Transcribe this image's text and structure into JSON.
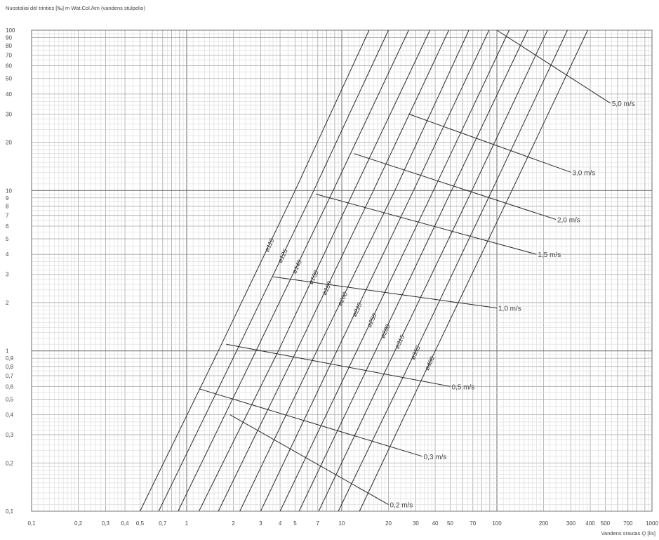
{
  "chart_data": {
    "type": "line",
    "title": "",
    "ylabel": "Nuostoliai dėl trinties [‰] m Wat.Col./km (vandens stulpelio)",
    "xlabel": "Vandens srautas  Q [l/s]",
    "x_scale": "log",
    "y_scale": "log",
    "xlim": [
      0.1,
      1000
    ],
    "ylim": [
      0.1,
      100
    ],
    "grid": true,
    "x_ticks": [
      {
        "value": 0.1,
        "label": "0,1"
      },
      {
        "value": 0.2,
        "label": "0,2"
      },
      {
        "value": 0.3,
        "label": "0,3"
      },
      {
        "value": 0.4,
        "label": "0,4"
      },
      {
        "value": 0.5,
        "label": "0,5"
      },
      {
        "value": 0.7,
        "label": "0,7"
      },
      {
        "value": 1,
        "label": "1"
      },
      {
        "value": 2,
        "label": "2"
      },
      {
        "value": 3,
        "label": "3"
      },
      {
        "value": 4,
        "label": "4"
      },
      {
        "value": 5,
        "label": "5"
      },
      {
        "value": 7,
        "label": "7"
      },
      {
        "value": 10,
        "label": "10"
      },
      {
        "value": 20,
        "label": "20"
      },
      {
        "value": 30,
        "label": "30"
      },
      {
        "value": 40,
        "label": "40"
      },
      {
        "value": 50,
        "label": "50"
      },
      {
        "value": 70,
        "label": "70"
      },
      {
        "value": 100,
        "label": "100"
      },
      {
        "value": 200,
        "label": "200"
      },
      {
        "value": 300,
        "label": "300"
      },
      {
        "value": 400,
        "label": "400"
      },
      {
        "value": 500,
        "label": "500"
      },
      {
        "value": 700,
        "label": "700"
      },
      {
        "value": 1000,
        "label": "1000"
      }
    ],
    "y_ticks": [
      {
        "value": 0.1,
        "label": "0,1"
      },
      {
        "value": 0.2,
        "label": "0,2"
      },
      {
        "value": 0.3,
        "label": "0,3"
      },
      {
        "value": 0.4,
        "label": "0,4"
      },
      {
        "value": 0.5,
        "label": "0,5"
      },
      {
        "value": 0.6,
        "label": "0,6"
      },
      {
        "value": 0.7,
        "label": "0,7"
      },
      {
        "value": 0.8,
        "label": "0,8"
      },
      {
        "value": 0.9,
        "label": "0,9"
      },
      {
        "value": 1,
        "label": "1"
      },
      {
        "value": 2,
        "label": "2"
      },
      {
        "value": 3,
        "label": "3"
      },
      {
        "value": 4,
        "label": "4"
      },
      {
        "value": 5,
        "label": "5"
      },
      {
        "value": 6,
        "label": "6"
      },
      {
        "value": 7,
        "label": "7"
      },
      {
        "value": 8,
        "label": "8"
      },
      {
        "value": 9,
        "label": "9"
      },
      {
        "value": 10,
        "label": "10"
      },
      {
        "value": 20,
        "label": "20"
      },
      {
        "value": 30,
        "label": "30"
      },
      {
        "value": 40,
        "label": "40"
      },
      {
        "value": 50,
        "label": "50"
      },
      {
        "value": 60,
        "label": "60"
      },
      {
        "value": 70,
        "label": "70"
      },
      {
        "value": 80,
        "label": "80"
      },
      {
        "value": 90,
        "label": "90"
      },
      {
        "value": 100,
        "label": "100"
      }
    ],
    "series": [
      {
        "name": "ø110",
        "points": [
          [
            0.5,
            0.1
          ],
          [
            1.6,
            1.0
          ],
          [
            5.0,
            10.0
          ],
          [
            15.0,
            100.0
          ]
        ]
      },
      {
        "name": "ø125",
        "points": [
          [
            0.66,
            0.1
          ],
          [
            2.1,
            1.0
          ],
          [
            6.6,
            10.0
          ],
          [
            20.0,
            100.0
          ]
        ]
      },
      {
        "name": "ø140",
        "points": [
          [
            0.88,
            0.1
          ],
          [
            2.8,
            1.0
          ],
          [
            8.8,
            10.0
          ],
          [
            27.0,
            100.0
          ]
        ]
      },
      {
        "name": "ø160",
        "points": [
          [
            1.2,
            0.1
          ],
          [
            3.9,
            1.0
          ],
          [
            12.0,
            10.0
          ],
          [
            37.0,
            100.0
          ]
        ]
      },
      {
        "name": "ø180",
        "points": [
          [
            1.6,
            0.1
          ],
          [
            5.1,
            1.0
          ],
          [
            16.0,
            10.0
          ],
          [
            49.0,
            100.0
          ]
        ]
      },
      {
        "name": "ø200",
        "points": [
          [
            2.2,
            0.1
          ],
          [
            6.9,
            1.0
          ],
          [
            22.0,
            10.0
          ],
          [
            66.0,
            100.0
          ]
        ]
      },
      {
        "name": "ø225",
        "points": [
          [
            3.0,
            0.1
          ],
          [
            9.3,
            1.0
          ],
          [
            29.0,
            10.0
          ],
          [
            89.0,
            100.0
          ]
        ]
      },
      {
        "name": "ø250",
        "points": [
          [
            4.0,
            0.1
          ],
          [
            12.5,
            1.0
          ],
          [
            39.0,
            10.0
          ],
          [
            120.0,
            100.0
          ]
        ]
      },
      {
        "name": "ø280",
        "points": [
          [
            5.3,
            0.1
          ],
          [
            16.5,
            1.0
          ],
          [
            51.0,
            10.0
          ],
          [
            158.0,
            100.0
          ]
        ]
      },
      {
        "name": "ø315",
        "points": [
          [
            7.1,
            0.1
          ],
          [
            22.0,
            1.0
          ],
          [
            69.0,
            10.0
          ],
          [
            212.0,
            100.0
          ]
        ]
      },
      {
        "name": "ø355",
        "points": [
          [
            9.5,
            0.1
          ],
          [
            30.0,
            1.0
          ],
          [
            93.0,
            10.0
          ],
          [
            285.0,
            100.0
          ]
        ]
      },
      {
        "name": "ø400",
        "points": [
          [
            13.0,
            0.1
          ],
          [
            40.0,
            1.0
          ],
          [
            125.0,
            10.0
          ],
          [
            385.0,
            100.0
          ]
        ]
      }
    ],
    "velocity_lines": [
      {
        "label": "5,0 m/s",
        "start": [
          100,
          100
        ],
        "end": [
          540,
          35
        ]
      },
      {
        "label": "3,0 m/s",
        "start": [
          27,
          30
        ],
        "end": [
          300,
          13
        ]
      },
      {
        "label": "2,0 m/s",
        "start": [
          12,
          17
        ],
        "end": [
          240,
          6.6
        ]
      },
      {
        "label": "1,5 m/s",
        "start": [
          6.8,
          9.5
        ],
        "end": [
          180,
          4.0
        ]
      },
      {
        "label": "1,0 m/s",
        "start": [
          3.6,
          2.9
        ],
        "end": [
          100,
          1.85
        ]
      },
      {
        "label": "0,5 m/s",
        "start": [
          1.8,
          1.1
        ],
        "end": [
          50,
          0.6
        ]
      },
      {
        "label": "0,3 m/s",
        "start": [
          1.2,
          0.58
        ],
        "end": [
          33,
          0.22
        ]
      },
      {
        "label": "0,2 m/s",
        "start": [
          1.9,
          0.4
        ],
        "end": [
          20,
          0.11
        ]
      }
    ]
  }
}
